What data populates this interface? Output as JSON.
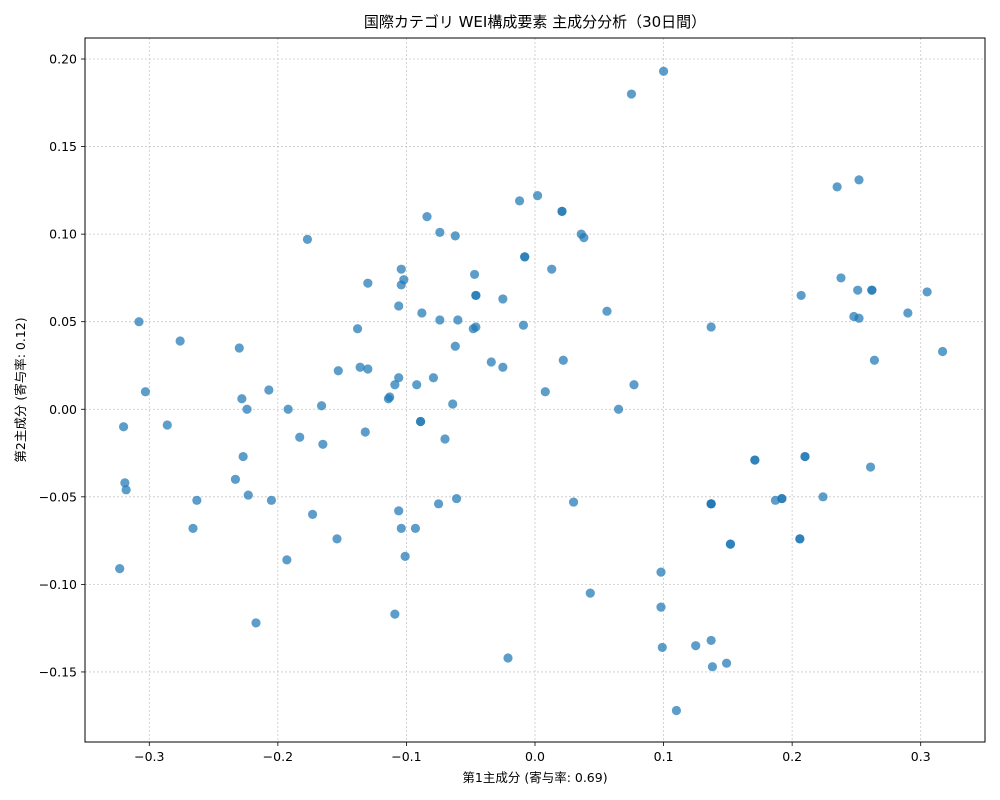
{
  "chart_data": {
    "type": "scatter",
    "title": "国際カテゴリ WEI構成要素 主成分分析（30日間）",
    "xlabel": "第1主成分 (寄与率: 0.69)",
    "ylabel": "第2主成分 (寄与率: 0.12)",
    "xlim": [
      -0.35,
      0.35
    ],
    "ylim": [
      -0.19,
      0.212
    ],
    "xticks": [
      -0.3,
      -0.2,
      -0.1,
      0.0,
      0.1,
      0.2,
      0.3
    ],
    "yticks": [
      -0.15,
      -0.1,
      -0.05,
      0.0,
      0.05,
      0.1,
      0.15,
      0.2
    ],
    "xtick_labels": [
      "−0.3",
      "−0.2",
      "−0.1",
      "0.0",
      "0.1",
      "0.2",
      "0.3"
    ],
    "ytick_labels": [
      "−0.15",
      "−0.10",
      "−0.05",
      "0.00",
      "0.05",
      "0.10",
      "0.15",
      "0.20"
    ],
    "grid": true,
    "color": "#1f77b4",
    "points": [
      [
        0.1,
        0.193
      ],
      [
        0.075,
        0.18
      ],
      [
        0.252,
        0.131
      ],
      [
        0.235,
        0.127
      ],
      [
        0.002,
        0.122
      ],
      [
        -0.012,
        0.119
      ],
      [
        0.021,
        0.113
      ],
      [
        0.021,
        0.113
      ],
      [
        -0.084,
        0.11
      ],
      [
        -0.074,
        0.101
      ],
      [
        0.036,
        0.1
      ],
      [
        -0.062,
        0.099
      ],
      [
        0.038,
        0.098
      ],
      [
        -0.177,
        0.097
      ],
      [
        -0.008,
        0.087
      ],
      [
        -0.008,
        0.087
      ],
      [
        -0.104,
        0.08
      ],
      [
        0.013,
        0.08
      ],
      [
        -0.047,
        0.077
      ],
      [
        0.238,
        0.075
      ],
      [
        -0.102,
        0.074
      ],
      [
        -0.13,
        0.072
      ],
      [
        -0.104,
        0.071
      ],
      [
        0.262,
        0.068
      ],
      [
        0.262,
        0.068
      ],
      [
        0.251,
        0.068
      ],
      [
        0.305,
        0.067
      ],
      [
        -0.046,
        0.065
      ],
      [
        -0.046,
        0.065
      ],
      [
        0.207,
        0.065
      ],
      [
        -0.025,
        0.063
      ],
      [
        -0.106,
        0.059
      ],
      [
        0.056,
        0.056
      ],
      [
        -0.088,
        0.055
      ],
      [
        0.29,
        0.055
      ],
      [
        0.248,
        0.053
      ],
      [
        0.252,
        0.052
      ],
      [
        -0.06,
        0.051
      ],
      [
        -0.074,
        0.051
      ],
      [
        -0.308,
        0.05
      ],
      [
        -0.009,
        0.048
      ],
      [
        -0.046,
        0.047
      ],
      [
        0.137,
        0.047
      ],
      [
        -0.048,
        0.046
      ],
      [
        -0.138,
        0.046
      ],
      [
        -0.276,
        0.039
      ],
      [
        -0.062,
        0.036
      ],
      [
        -0.23,
        0.035
      ],
      [
        0.317,
        0.033
      ],
      [
        0.022,
        0.028
      ],
      [
        0.264,
        0.028
      ],
      [
        -0.034,
        0.027
      ],
      [
        -0.025,
        0.024
      ],
      [
        -0.136,
        0.024
      ],
      [
        -0.13,
        0.023
      ],
      [
        -0.153,
        0.022
      ],
      [
        -0.106,
        0.018
      ],
      [
        -0.079,
        0.018
      ],
      [
        -0.092,
        0.014
      ],
      [
        0.077,
        0.014
      ],
      [
        -0.109,
        0.014
      ],
      [
        -0.207,
        0.011
      ],
      [
        0.008,
        0.01
      ],
      [
        -0.303,
        0.01
      ],
      [
        -0.113,
        0.007
      ],
      [
        -0.114,
        0.006
      ],
      [
        -0.228,
        0.006
      ],
      [
        -0.064,
        0.003
      ],
      [
        -0.166,
        0.002
      ],
      [
        -0.192,
        0.0
      ],
      [
        -0.224,
        0.0
      ],
      [
        0.065,
        0.0
      ],
      [
        -0.089,
        -0.007
      ],
      [
        -0.089,
        -0.007
      ],
      [
        -0.286,
        -0.009
      ],
      [
        -0.32,
        -0.01
      ],
      [
        -0.132,
        -0.013
      ],
      [
        -0.183,
        -0.016
      ],
      [
        -0.07,
        -0.017
      ],
      [
        -0.165,
        -0.02
      ],
      [
        -0.227,
        -0.027
      ],
      [
        0.21,
        -0.027
      ],
      [
        0.21,
        -0.027
      ],
      [
        0.171,
        -0.029
      ],
      [
        0.171,
        -0.029
      ],
      [
        0.261,
        -0.033
      ],
      [
        -0.233,
        -0.04
      ],
      [
        -0.319,
        -0.042
      ],
      [
        -0.318,
        -0.046
      ],
      [
        -0.223,
        -0.049
      ],
      [
        0.224,
        -0.05
      ],
      [
        0.192,
        -0.051
      ],
      [
        0.192,
        -0.051
      ],
      [
        0.187,
        -0.052
      ],
      [
        -0.061,
        -0.051
      ],
      [
        -0.263,
        -0.052
      ],
      [
        -0.205,
        -0.052
      ],
      [
        0.03,
        -0.053
      ],
      [
        -0.075,
        -0.054
      ],
      [
        0.137,
        -0.054
      ],
      [
        0.137,
        -0.054
      ],
      [
        0.137,
        -0.054
      ],
      [
        -0.106,
        -0.058
      ],
      [
        -0.173,
        -0.06
      ],
      [
        -0.266,
        -0.068
      ],
      [
        -0.104,
        -0.068
      ],
      [
        -0.093,
        -0.068
      ],
      [
        -0.154,
        -0.074
      ],
      [
        0.206,
        -0.074
      ],
      [
        0.206,
        -0.074
      ],
      [
        0.152,
        -0.077
      ],
      [
        0.152,
        -0.077
      ],
      [
        -0.101,
        -0.084
      ],
      [
        -0.193,
        -0.086
      ],
      [
        -0.323,
        -0.091
      ],
      [
        0.098,
        -0.093
      ],
      [
        0.043,
        -0.105
      ],
      [
        0.098,
        -0.113
      ],
      [
        -0.109,
        -0.117
      ],
      [
        -0.217,
        -0.122
      ],
      [
        0.137,
        -0.132
      ],
      [
        0.125,
        -0.135
      ],
      [
        0.099,
        -0.136
      ],
      [
        -0.021,
        -0.142
      ],
      [
        0.149,
        -0.145
      ],
      [
        0.138,
        -0.147
      ],
      [
        0.11,
        -0.172
      ]
    ]
  }
}
